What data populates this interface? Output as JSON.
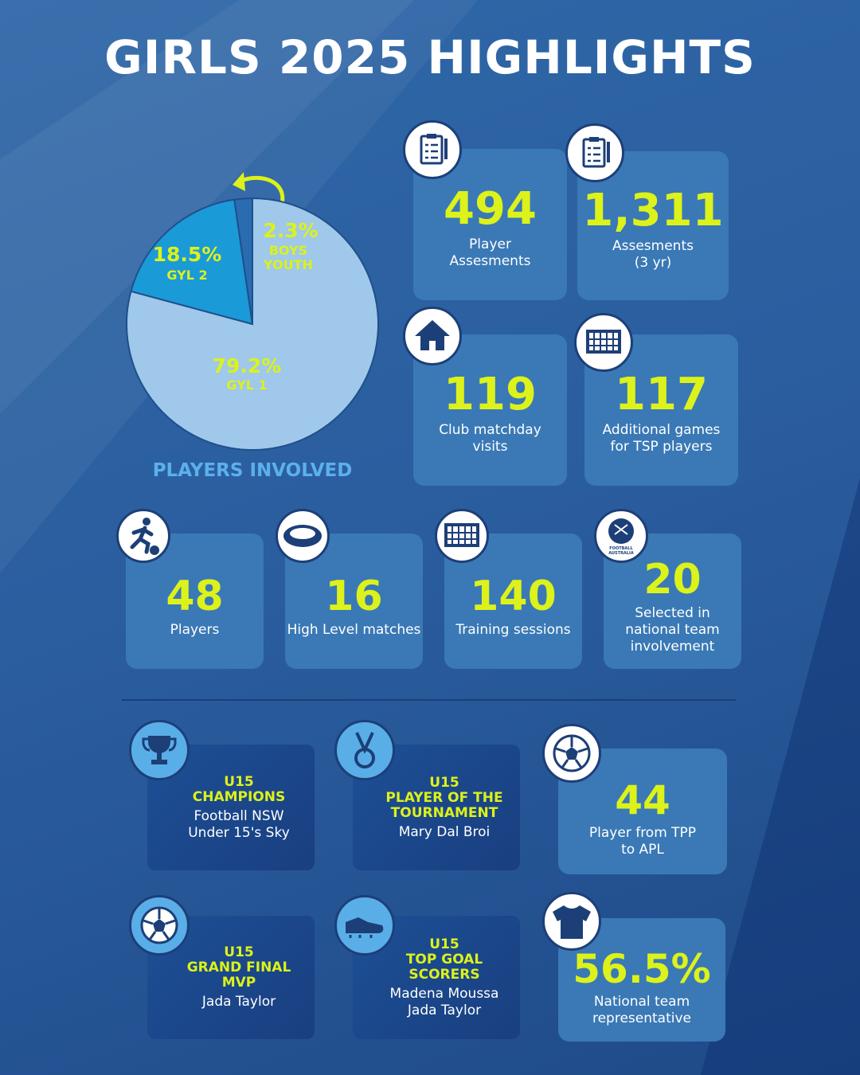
{
  "header": {
    "title": "GIRLS 2025 HIGHLIGHTS"
  },
  "chart_data": {
    "type": "pie",
    "title": "PLAYERS INVOLVED",
    "categories": [
      "GYL 1",
      "GYL 2",
      "BOYS YOUTH"
    ],
    "values": [
      79.2,
      18.5,
      2.3
    ],
    "value_labels": [
      "79.2%",
      "18.5%",
      "2.3%"
    ],
    "colors": [
      "#9fc8ea",
      "#1b9ad8",
      "#2a6cb0"
    ]
  },
  "stats_top": [
    {
      "value": "494",
      "label": [
        "Player",
        "Assesments"
      ]
    },
    {
      "value": "1,311",
      "label": [
        "Assesments",
        "(3 yr)"
      ]
    },
    {
      "value": "119",
      "label": [
        "Club matchday",
        "visits"
      ]
    },
    {
      "value": "117",
      "label": [
        "Additional games",
        "for TSP players"
      ]
    }
  ],
  "stats_mid": [
    {
      "value": "48",
      "label": [
        "Players"
      ]
    },
    {
      "value": "16",
      "label": [
        "High Level matches"
      ]
    },
    {
      "value": "140",
      "label": [
        "Training sessions"
      ]
    },
    {
      "value": "20",
      "label": [
        "Selected in",
        "national team",
        "involvement"
      ],
      "logo": "FOOTBALL AUSTRALIA"
    }
  ],
  "awards": [
    {
      "level": "U15",
      "title": [
        "CHAMPIONS"
      ],
      "detail": [
        "Football NSW",
        "Under 15's Sky"
      ]
    },
    {
      "level": "U15",
      "title": [
        "PLAYER OF THE",
        "TOURNAMENT"
      ],
      "detail": [
        "Mary Dal Broi"
      ]
    },
    {
      "level": "U15",
      "title": [
        "GRAND FINAL",
        "MVP"
      ],
      "detail": [
        "Jada Taylor"
      ]
    },
    {
      "level": "U15",
      "title": [
        "TOP GOAL",
        "SCORERS"
      ],
      "detail": [
        "Madena Moussa",
        "Jada Taylor"
      ]
    }
  ],
  "stats_bottom": [
    {
      "value": "44",
      "label": [
        "Player from TPP",
        "to APL"
      ]
    },
    {
      "value": "56.5%",
      "label": [
        "National team",
        "representative"
      ]
    }
  ]
}
